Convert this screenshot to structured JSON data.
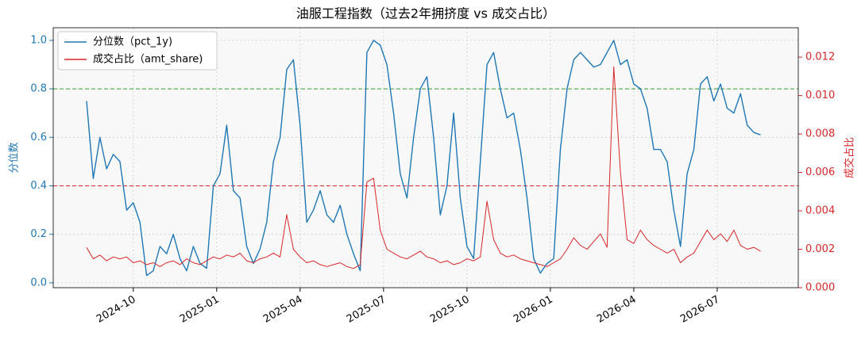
{
  "chart_data": {
    "type": "line",
    "title": "油服工程指数（过去2年拥挤度 vs 成交占比）",
    "y_label": "分位数",
    "y2_label": "成交占比",
    "x": [
      2024.61,
      2024.63,
      2024.65,
      2024.67,
      2024.69,
      2024.71,
      2024.73,
      2024.75,
      2024.77,
      2024.79,
      2024.81,
      2024.83,
      2024.85,
      2024.87,
      2024.89,
      2024.91,
      2024.93,
      2024.95,
      2024.97,
      2024.99,
      2025.01,
      2025.03,
      2025.05,
      2025.07,
      2025.09,
      2025.11,
      2025.13,
      2025.15,
      2025.17,
      2025.19,
      2025.21,
      2025.23,
      2025.25,
      2025.27,
      2025.29,
      2025.31,
      2025.33,
      2025.35,
      2025.37,
      2025.39,
      2025.41,
      2025.43,
      2025.45,
      2025.47,
      2025.49,
      2025.51,
      2025.53,
      2025.55,
      2025.57,
      2025.59,
      2025.61,
      2025.63,
      2025.65,
      2025.67,
      2025.69,
      2025.71,
      2025.73,
      2025.75,
      2025.77,
      2025.79,
      2025.81,
      2025.83,
      2025.85,
      2025.87,
      2025.89,
      2025.91,
      2025.93,
      2025.95,
      2025.97,
      2025.99,
      2026.01,
      2026.03,
      2026.05,
      2026.07,
      2026.09,
      2026.11,
      2026.13,
      2026.15,
      2026.17,
      2026.19,
      2026.21,
      2026.23,
      2026.25,
      2026.27,
      2026.29,
      2026.31,
      2026.33,
      2026.35,
      2026.37,
      2026.39,
      2026.41,
      2026.43,
      2026.45,
      2026.47,
      2026.49,
      2026.51,
      2026.53,
      2026.55,
      2026.57,
      2026.59,
      2026.61,
      2026.63
    ],
    "series": [
      {
        "name": "分位数（pct_1y)",
        "color": "#1f77b4",
        "axis": "y",
        "values": [
          0.75,
          0.43,
          0.6,
          0.47,
          0.53,
          0.5,
          0.3,
          0.33,
          0.25,
          0.03,
          0.05,
          0.15,
          0.12,
          0.2,
          0.1,
          0.05,
          0.15,
          0.08,
          0.06,
          0.4,
          0.45,
          0.65,
          0.38,
          0.35,
          0.15,
          0.08,
          0.14,
          0.25,
          0.5,
          0.6,
          0.88,
          0.92,
          0.65,
          0.25,
          0.3,
          0.38,
          0.28,
          0.25,
          0.32,
          0.2,
          0.12,
          0.05,
          0.95,
          1.0,
          0.98,
          0.9,
          0.7,
          0.45,
          0.35,
          0.6,
          0.8,
          0.85,
          0.6,
          0.28,
          0.4,
          0.7,
          0.35,
          0.15,
          0.1,
          0.5,
          0.9,
          0.95,
          0.8,
          0.68,
          0.7,
          0.55,
          0.35,
          0.1,
          0.04,
          0.08,
          0.1,
          0.55,
          0.8,
          0.92,
          0.95,
          0.92,
          0.89,
          0.9,
          0.95,
          1.0,
          0.9,
          0.92,
          0.82,
          0.8,
          0.72,
          0.55,
          0.55,
          0.5,
          0.3,
          0.15,
          0.45,
          0.55,
          0.82,
          0.85,
          0.75,
          0.82,
          0.72,
          0.7,
          0.78,
          0.65,
          0.62,
          0.61
        ]
      },
      {
        "name": "成交占比（amt_share)",
        "color": "#d62728",
        "axis": "y2",
        "values": [
          0.0021,
          0.0015,
          0.0017,
          0.0014,
          0.0016,
          0.0015,
          0.0016,
          0.0013,
          0.0014,
          0.0012,
          0.0013,
          0.0011,
          0.0013,
          0.0014,
          0.0012,
          0.0015,
          0.0013,
          0.0012,
          0.0014,
          0.0016,
          0.0015,
          0.0017,
          0.0016,
          0.0018,
          0.0014,
          0.0013,
          0.0015,
          0.0016,
          0.0018,
          0.0016,
          0.0038,
          0.002,
          0.0016,
          0.0013,
          0.0014,
          0.0012,
          0.0011,
          0.0012,
          0.0013,
          0.0011,
          0.001,
          0.0012,
          0.0055,
          0.0057,
          0.003,
          0.002,
          0.0018,
          0.0016,
          0.0015,
          0.0017,
          0.0019,
          0.0016,
          0.0015,
          0.0013,
          0.0014,
          0.0012,
          0.0013,
          0.0015,
          0.0014,
          0.0016,
          0.0045,
          0.0025,
          0.0018,
          0.0016,
          0.0017,
          0.0015,
          0.0014,
          0.0013,
          0.0012,
          0.0011,
          0.0013,
          0.0015,
          0.002,
          0.0026,
          0.0022,
          0.002,
          0.0024,
          0.0028,
          0.0021,
          0.0115,
          0.006,
          0.0025,
          0.0023,
          0.003,
          0.0025,
          0.0022,
          0.002,
          0.0018,
          0.002,
          0.0013,
          0.0016,
          0.0018,
          0.0024,
          0.003,
          0.0025,
          0.0028,
          0.0024,
          0.003,
          0.0022,
          0.002,
          0.0021,
          0.0019
        ]
      }
    ],
    "hlines": [
      {
        "y": 0.8,
        "color": "#2ca02c"
      },
      {
        "y": 0.4,
        "color": "#d62728"
      }
    ],
    "xlim": [
      2024.51,
      2026.743
    ],
    "xticks": [
      {
        "value": 2024.75,
        "label": "2024-10"
      },
      {
        "value": 2025.0,
        "label": "2025-01"
      },
      {
        "value": 2025.25,
        "label": "2025-04"
      },
      {
        "value": 2025.5,
        "label": "2025-07"
      },
      {
        "value": 2025.75,
        "label": "2025-10"
      },
      {
        "value": 2026.0,
        "label": "2026-01"
      },
      {
        "value": 2026.25,
        "label": "2026-04"
      },
      {
        "value": 2026.5,
        "label": "2026-07"
      }
    ],
    "ylim": [
      -0.02,
      1.052
    ],
    "yticks": [
      {
        "value": 0,
        "label": "0.0"
      },
      0.2,
      0.4,
      0.6,
      0.8,
      {
        "value": 1,
        "label": "1.0"
      }
    ],
    "y2lim": [
      0,
      0.01353
    ],
    "y2ticks": [
      {
        "value": 0,
        "label": "0.000"
      },
      {
        "value": 0.002,
        "label": "0.002"
      },
      {
        "value": 0.004,
        "label": "0.004"
      },
      {
        "value": 0.006,
        "label": "0.006"
      },
      {
        "value": 0.008,
        "label": "0.008"
      },
      {
        "value": 0.01,
        "label": "0.010"
      },
      {
        "value": 0.012,
        "label": "0.012"
      }
    ],
    "grid": true,
    "legend": "upper-left"
  }
}
